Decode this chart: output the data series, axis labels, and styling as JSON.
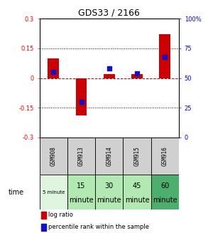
{
  "title": "GDS33 / 2166",
  "samples": [
    "GSM908",
    "GSM913",
    "GSM914",
    "GSM915",
    "GSM916"
  ],
  "time_labels_row1": [
    "5 minute",
    "15",
    "30",
    "45",
    "60"
  ],
  "time_labels_row2": [
    "",
    "minute",
    "minute",
    "minute",
    "minute"
  ],
  "time_colors": [
    "#e0f5e0",
    "#b2e8b2",
    "#b2e8b2",
    "#b2e8b2",
    "#4caf6e"
  ],
  "log_ratios": [
    0.1,
    -0.19,
    0.02,
    0.02,
    0.22
  ],
  "percentile_ranks": [
    55,
    30,
    58,
    54,
    68
  ],
  "ylim_left": [
    -0.3,
    0.3
  ],
  "ylim_right": [
    0,
    100
  ],
  "yticks_left": [
    -0.3,
    -0.15,
    0.0,
    0.15,
    0.3
  ],
  "yticks_right": [
    0,
    25,
    50,
    75,
    100
  ],
  "bar_color_red": "#cc0000",
  "bar_color_blue": "#1111cc",
  "dashed_line_color": "#cc0000",
  "dotted_line_color": "#000000",
  "bar_width": 0.4,
  "background_color": "#ffffff",
  "sample_cell_color": "#d0d0d0"
}
